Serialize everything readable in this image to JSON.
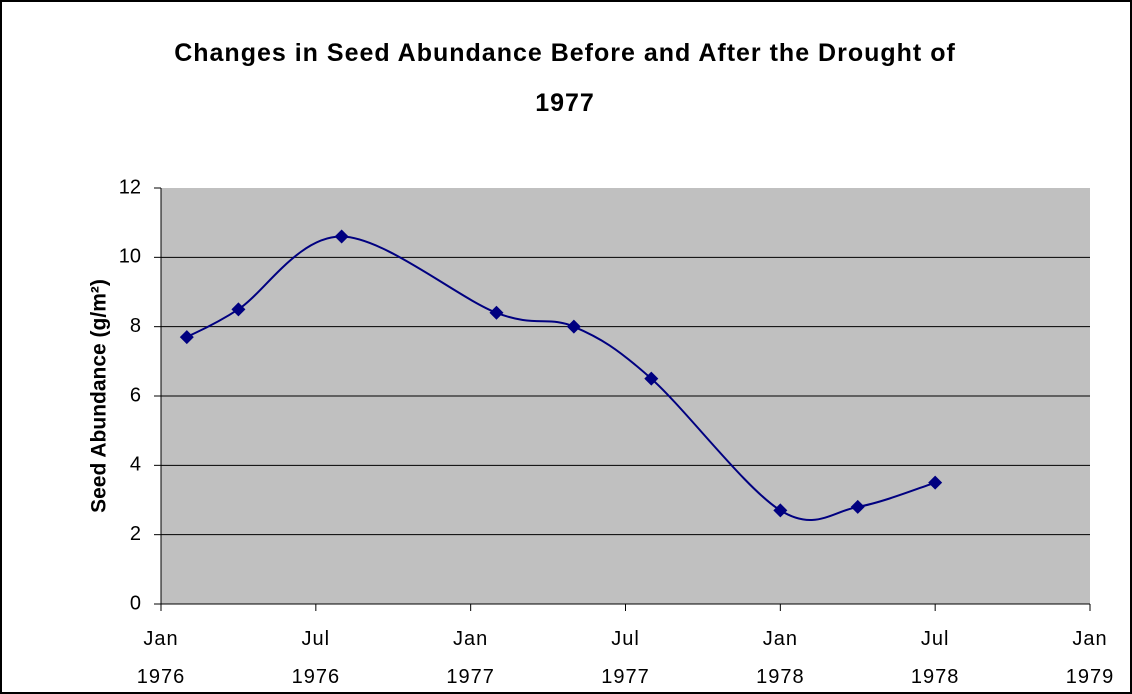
{
  "chart_data": {
    "type": "line",
    "title": "Changes in Seed Abundance Before and After the Drought of 1977",
    "y_label": "Seed Abundance (g/m²)",
    "x": [
      "1976-02",
      "1976-04",
      "1976-08",
      "1977-02",
      "1977-05",
      "1977-08",
      "1978-01",
      "1978-04",
      "1978-07"
    ],
    "series": [
      {
        "name": "Seed Abundance",
        "color": "#000080",
        "values": [
          7.7,
          8.5,
          10.6,
          8.4,
          8.0,
          6.5,
          2.7,
          2.8,
          3.5
        ]
      }
    ],
    "xlim": [
      "1976-01",
      "1979-01"
    ],
    "xticks": [
      {
        "value": "1976-01",
        "label": "Jan\n1976"
      },
      {
        "value": "1976-07",
        "label": "Jul\n1976"
      },
      {
        "value": "1977-01",
        "label": "Jan\n1977"
      },
      {
        "value": "1977-07",
        "label": "Jul\n1977"
      },
      {
        "value": "1978-01",
        "label": "Jan\n1978"
      },
      {
        "value": "1978-07",
        "label": "Jul\n1978"
      },
      {
        "value": "1979-01",
        "label": "Jan\n1979"
      }
    ],
    "ylim": [
      0,
      12
    ],
    "yticks": [
      0,
      2,
      4,
      6,
      8,
      10,
      12
    ],
    "grid": true,
    "smooth": true
  }
}
